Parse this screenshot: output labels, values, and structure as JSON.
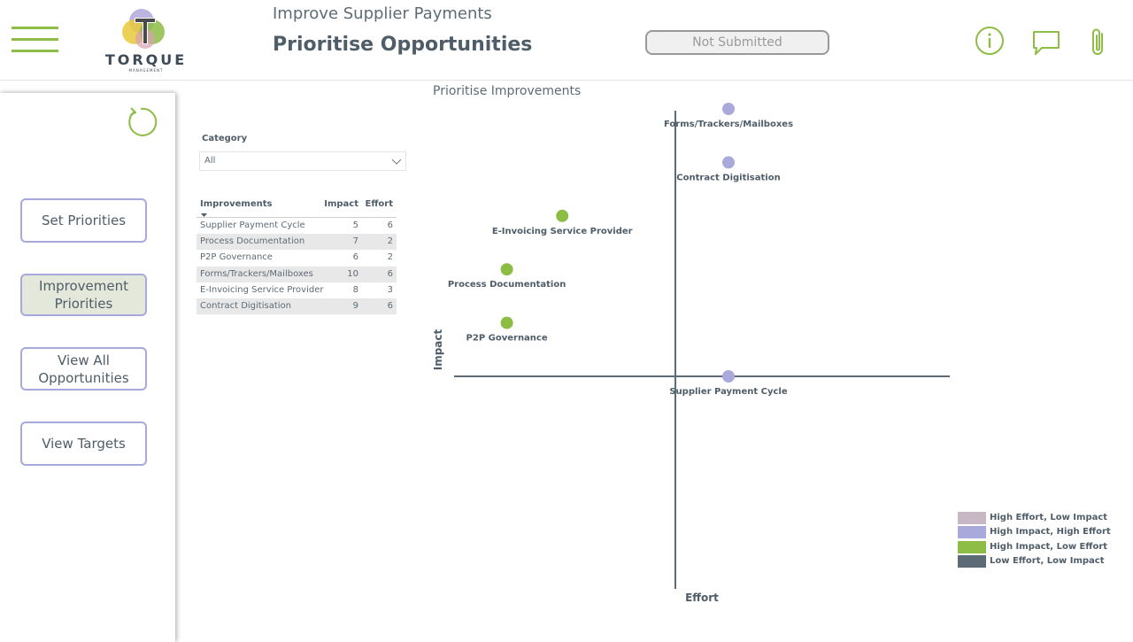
{
  "header": {
    "logo_text": "TORQUE",
    "logo_subtext": "MANAGEMENT",
    "subtitle": "Improve Supplier Payments",
    "title": "Prioritise Opportunities",
    "status": "Not Submitted",
    "icons": [
      "menu-icon",
      "info-icon",
      "comment-icon",
      "paperclip-icon"
    ]
  },
  "colors": {
    "accent": "#8dbd45",
    "button_border": "#a7a9dd",
    "high_effort_low_impact": "#c8b8c6",
    "high_impact_high_effort": "#a9a9dc",
    "high_impact_low_effort": "#8dbd45",
    "low_effort_low_impact": "#5d6b76"
  },
  "sidebar": {
    "refresh_icon": "refresh-icon",
    "buttons": [
      {
        "label": "Set Priorities"
      },
      {
        "label": "Improvement Priorities"
      },
      {
        "label": "View All Opportunities"
      },
      {
        "label": "View Targets"
      }
    ]
  },
  "filter": {
    "label": "Category",
    "value": "All"
  },
  "table": {
    "headers": [
      "Improvements",
      "Impact",
      "Effort"
    ],
    "rows": [
      {
        "name": "Supplier Payment Cycle",
        "impact": "5",
        "effort": "6"
      },
      {
        "name": "Process Documentation",
        "impact": "7",
        "effort": "2"
      },
      {
        "name": "P2P Governance",
        "impact": "6",
        "effort": "2"
      },
      {
        "name": "Forms/Trackers/Mailboxes",
        "impact": "10",
        "effort": "6"
      },
      {
        "name": "E-Invoicing Service Provider",
        "impact": "8",
        "effort": "3"
      },
      {
        "name": "Contract Digitisation",
        "impact": "9",
        "effort": "6"
      }
    ]
  },
  "chart_data": {
    "type": "scatter",
    "title": "Prioritise Improvements",
    "xlabel": "Effort",
    "ylabel": "Impact",
    "xlim": [
      1,
      10
    ],
    "ylim": [
      0,
      10
    ],
    "x_cross": 5,
    "y_cross": 5,
    "points": [
      {
        "label": "Forms/Trackers/Mailboxes",
        "x": 6,
        "y": 10,
        "category": "High Impact, High Effort"
      },
      {
        "label": "Contract Digitisation",
        "x": 6,
        "y": 9,
        "category": "High Impact, High Effort"
      },
      {
        "label": "E-Invoicing Service Provider",
        "x": 3,
        "y": 8,
        "category": "High Impact, Low Effort"
      },
      {
        "label": "Process Documentation",
        "x": 2,
        "y": 7,
        "category": "High Impact, Low Effort"
      },
      {
        "label": "P2P Governance",
        "x": 2,
        "y": 6,
        "category": "High Impact, Low Effort"
      },
      {
        "label": "Supplier Payment Cycle",
        "x": 6,
        "y": 5,
        "category": "High Impact, High Effort"
      }
    ],
    "legend": [
      {
        "label": "High Effort, Low Impact",
        "color": "#c8b8c6"
      },
      {
        "label": "High Impact, High Effort",
        "color": "#a9a9dc"
      },
      {
        "label": "High Impact, Low Effort",
        "color": "#8dbd45"
      },
      {
        "label": "Low Effort, Low Impact",
        "color": "#5d6b76"
      }
    ],
    "legend_position": "bottom-right",
    "grid": false
  }
}
